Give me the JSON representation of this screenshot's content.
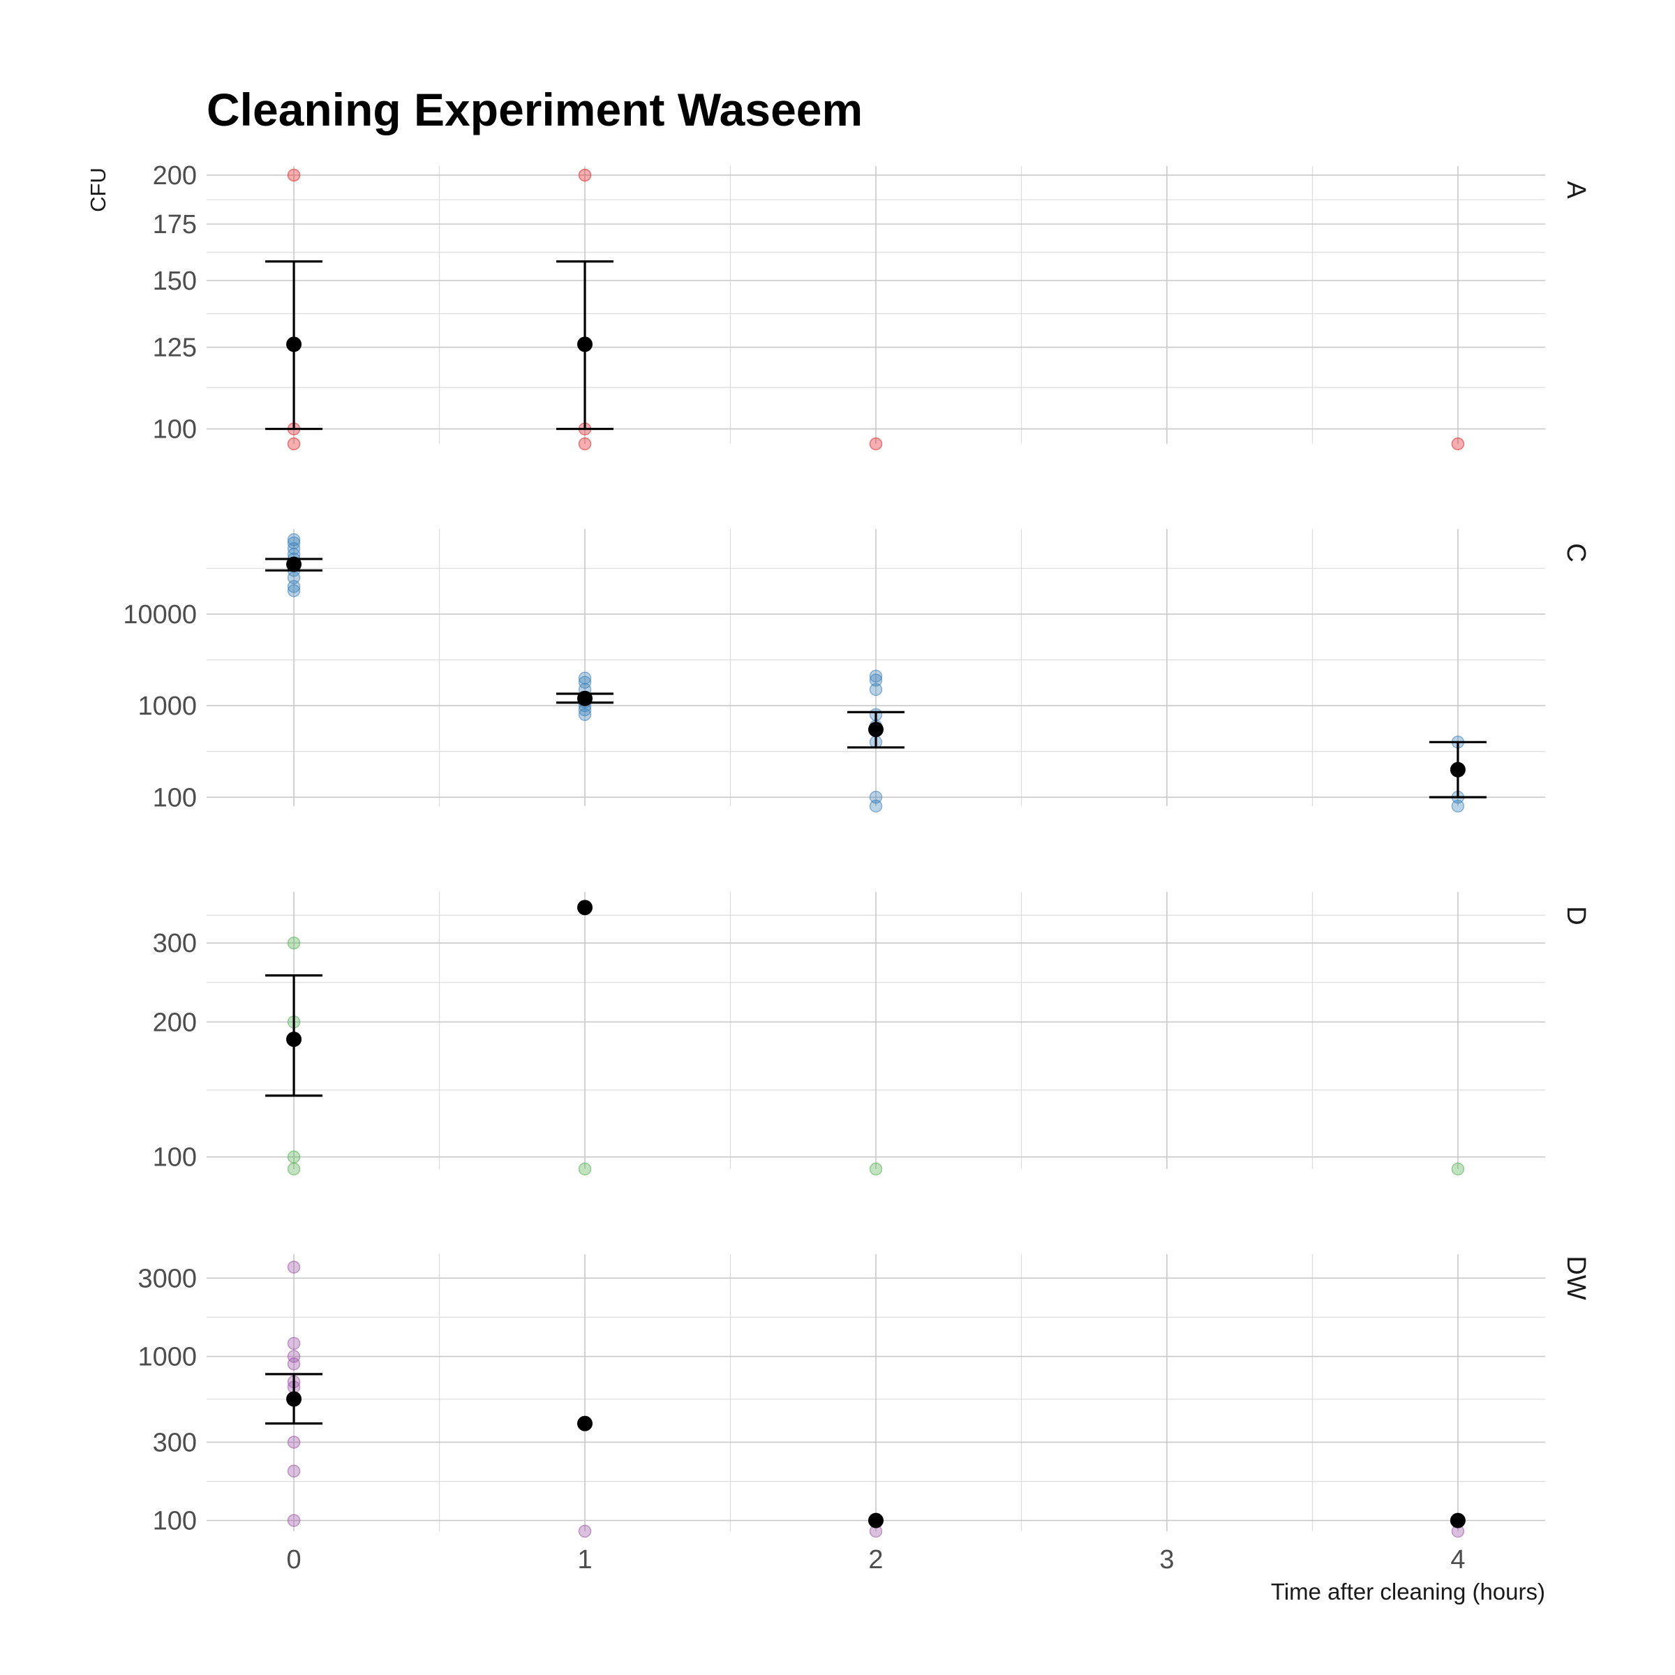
{
  "chart_data": {
    "type": "scatter",
    "title": "Cleaning Experiment Waseem",
    "ylabel": "CFU",
    "xlabel": "Time after cleaning (hours)",
    "x_ticks": [
      0,
      1,
      2,
      3,
      4
    ],
    "xlim": [
      -0.3,
      4.3
    ],
    "y_scale": "log",
    "grid": true,
    "point_alpha": 0.35,
    "panels": [
      {
        "name": "A",
        "color": "#E41A1C",
        "ylim": [
          96,
          205
        ],
        "y_ticks": [
          100,
          125,
          150,
          175,
          200
        ],
        "y_minor": [
          112,
          137,
          162,
          187
        ],
        "points": [
          {
            "x": 0,
            "y": 200
          },
          {
            "x": 0,
            "y": 100
          },
          {
            "x": 0,
            "y": 96
          },
          {
            "x": 1,
            "y": 200
          },
          {
            "x": 1,
            "y": 100
          },
          {
            "x": 1,
            "y": 96
          },
          {
            "x": 2,
            "y": 96
          },
          {
            "x": 4,
            "y": 96
          }
        ],
        "summary": [
          {
            "x": 0,
            "mean": 126,
            "lower": 100,
            "upper": 158
          },
          {
            "x": 1,
            "mean": 126,
            "lower": 100,
            "upper": 158
          }
        ]
      },
      {
        "name": "C",
        "color": "#377EB8",
        "ylim": [
          80,
          85000
        ],
        "y_ticks": [
          100,
          1000,
          10000
        ],
        "y_minor": [
          316,
          3162,
          31623
        ],
        "points": [
          {
            "x": 0,
            "y": 65000
          },
          {
            "x": 0,
            "y": 60000
          },
          {
            "x": 0,
            "y": 52000
          },
          {
            "x": 0,
            "y": 45000
          },
          {
            "x": 0,
            "y": 40000
          },
          {
            "x": 0,
            "y": 35000
          },
          {
            "x": 0,
            "y": 30000
          },
          {
            "x": 0,
            "y": 25000
          },
          {
            "x": 0,
            "y": 20000
          },
          {
            "x": 0,
            "y": 18000
          },
          {
            "x": 1,
            "y": 2000
          },
          {
            "x": 1,
            "y": 1800
          },
          {
            "x": 1,
            "y": 1500
          },
          {
            "x": 1,
            "y": 1200
          },
          {
            "x": 1,
            "y": 1100
          },
          {
            "x": 1,
            "y": 1000
          },
          {
            "x": 1,
            "y": 900
          },
          {
            "x": 1,
            "y": 800
          },
          {
            "x": 2,
            "y": 2100
          },
          {
            "x": 2,
            "y": 1900
          },
          {
            "x": 2,
            "y": 1500
          },
          {
            "x": 2,
            "y": 800
          },
          {
            "x": 2,
            "y": 600
          },
          {
            "x": 2,
            "y": 400
          },
          {
            "x": 2,
            "y": 100
          },
          {
            "x": 2,
            "y": 80
          },
          {
            "x": 4,
            "y": 400
          },
          {
            "x": 4,
            "y": 100
          },
          {
            "x": 4,
            "y": 80
          }
        ],
        "summary": [
          {
            "x": 0,
            "mean": 35000,
            "lower": 30000,
            "upper": 40000
          },
          {
            "x": 1,
            "mean": 1200,
            "lower": 1080,
            "upper": 1350
          },
          {
            "x": 2,
            "mean": 550,
            "lower": 350,
            "upper": 850
          },
          {
            "x": 4,
            "mean": 200,
            "lower": 100,
            "upper": 400
          }
        ]
      },
      {
        "name": "D",
        "color": "#4DAF4A",
        "ylim": [
          94,
          390
        ],
        "y_ticks": [
          100,
          200,
          300
        ],
        "y_minor": [
          141,
          245,
          346
        ],
        "points": [
          {
            "x": 0,
            "y": 300
          },
          {
            "x": 0,
            "y": 200
          },
          {
            "x": 0,
            "y": 100
          },
          {
            "x": 0,
            "y": 94
          },
          {
            "x": 1,
            "y": 94
          },
          {
            "x": 2,
            "y": 94
          },
          {
            "x": 4,
            "y": 94
          }
        ],
        "summary": [
          {
            "x": 0,
            "mean": 183,
            "lower": 137,
            "upper": 254
          },
          {
            "x": 1,
            "mean": 360
          }
        ]
      },
      {
        "name": "DW",
        "color": "#984EA3",
        "ylim": [
          86,
          4200
        ],
        "y_ticks": [
          100,
          300,
          1000,
          3000
        ],
        "y_minor": [
          173,
          548,
          1732
        ],
        "points": [
          {
            "x": 0,
            "y": 3500
          },
          {
            "x": 0,
            "y": 1200
          },
          {
            "x": 0,
            "y": 1000
          },
          {
            "x": 0,
            "y": 900
          },
          {
            "x": 0,
            "y": 700
          },
          {
            "x": 0,
            "y": 650
          },
          {
            "x": 0,
            "y": 300
          },
          {
            "x": 0,
            "y": 200
          },
          {
            "x": 0,
            "y": 100
          },
          {
            "x": 1,
            "y": 86
          },
          {
            "x": 2,
            "y": 86
          },
          {
            "x": 4,
            "y": 86
          }
        ],
        "summary": [
          {
            "x": 0,
            "mean": 550,
            "lower": 390,
            "upper": 780
          },
          {
            "x": 1,
            "mean": 390
          },
          {
            "x": 2,
            "mean": 100
          },
          {
            "x": 4,
            "mean": 100
          }
        ]
      }
    ]
  }
}
